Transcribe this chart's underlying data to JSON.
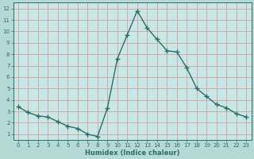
{
  "x": [
    0,
    1,
    2,
    3,
    4,
    5,
    6,
    7,
    8,
    9,
    10,
    11,
    12,
    13,
    14,
    15,
    16,
    17,
    18,
    19,
    20,
    21,
    22,
    23
  ],
  "y": [
    3.4,
    2.9,
    2.6,
    2.5,
    2.1,
    1.7,
    1.5,
    1.0,
    0.8,
    3.3,
    7.6,
    9.7,
    11.8,
    10.3,
    9.3,
    8.3,
    8.2,
    6.8,
    5.0,
    4.3,
    3.6,
    3.3,
    2.8,
    2.5
  ],
  "line_color": "#2d6e6a",
  "bg_color": "#b5d9d5",
  "plot_bg_color": "#c8e8e5",
  "grid_color": "#d4a0a0",
  "outer_bg": "#b5d9d5",
  "xlabel": "Humidex (Indice chaleur)",
  "xlim": [
    -0.5,
    23.5
  ],
  "ylim": [
    0.5,
    12.5
  ],
  "xticks": [
    0,
    1,
    2,
    3,
    4,
    5,
    6,
    7,
    8,
    9,
    10,
    11,
    12,
    13,
    14,
    15,
    16,
    17,
    18,
    19,
    20,
    21,
    22,
    23
  ],
  "yticks": [
    1,
    2,
    3,
    4,
    5,
    6,
    7,
    8,
    9,
    10,
    11,
    12
  ],
  "font_color": "#2d6e6a",
  "marker": "+",
  "marker_size": 4,
  "line_width": 1.0,
  "xlabel_fontsize": 6.0,
  "tick_fontsize": 5.0
}
